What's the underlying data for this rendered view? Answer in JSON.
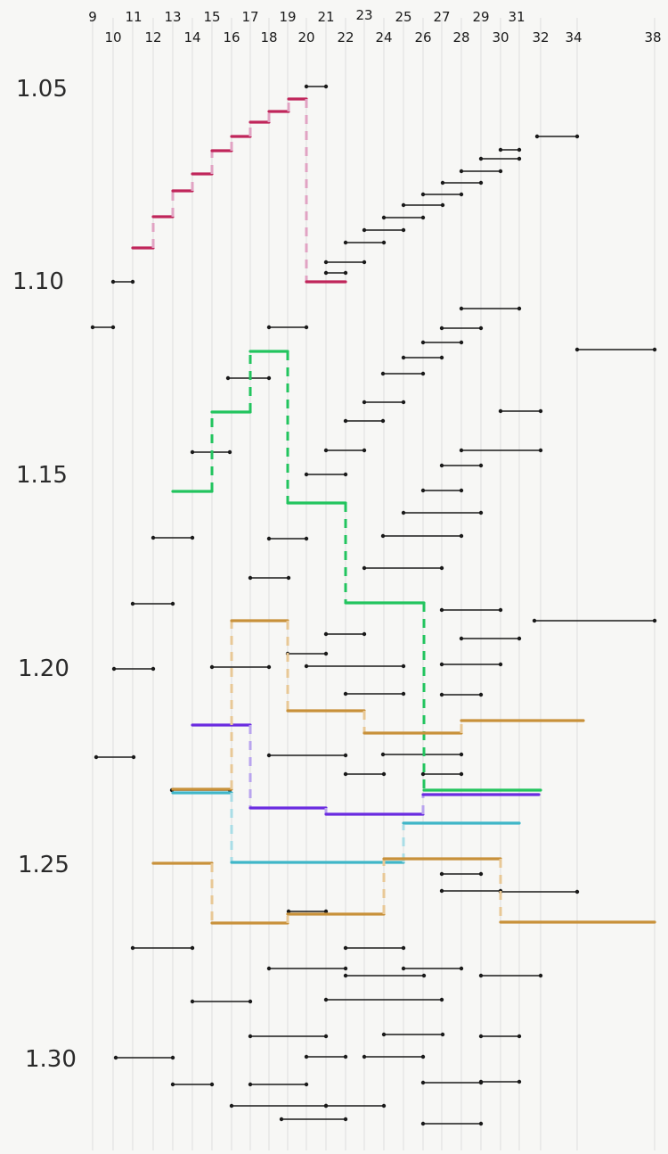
{
  "x_ticks_top": [
    "9",
    "11",
    "13",
    "15",
    "17",
    "19",
    "21",
    "23",
    "25",
    "27",
    "29",
    "31"
  ],
  "x_ticks_bottom": [
    "10",
    "12",
    "14",
    "16",
    "18",
    "20",
    "22",
    "24",
    "26",
    "28",
    "30",
    "32",
    "34",
    "38"
  ],
  "y_labels": [
    "1.05",
    "1.10",
    "1.15",
    "1.20",
    "1.25",
    "1.30"
  ],
  "colors": {
    "black": "#1a1a1a",
    "magenta": "#c0255a",
    "magenta_light": "#e1a3c3",
    "green": "#22c45e",
    "orange": "#c8913a",
    "orange_light": "#e8c896",
    "purple": "#6a2be0",
    "purple_light": "#b9a4ee",
    "cyan": "#3fb6c8",
    "cyan_light": "#a9dde6"
  }
}
